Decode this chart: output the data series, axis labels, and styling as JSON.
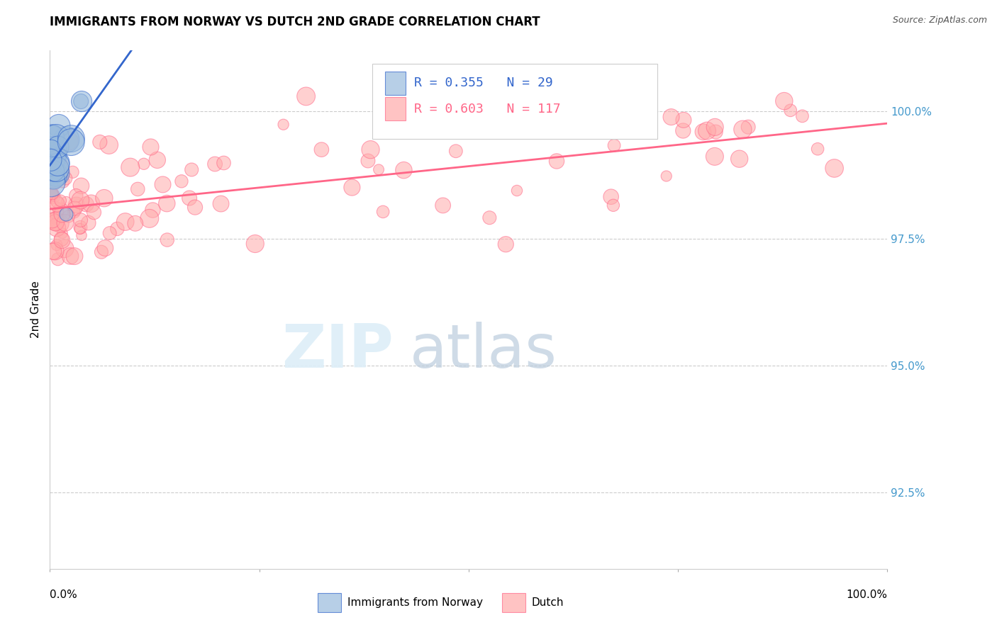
{
  "title": "IMMIGRANTS FROM NORWAY VS DUTCH 2ND GRADE CORRELATION CHART",
  "source": "Source: ZipAtlas.com",
  "ylabel": "2nd Grade",
  "yticks": [
    92.5,
    95.0,
    97.5,
    100.0
  ],
  "xlim": [
    0.0,
    100.0
  ],
  "ylim": [
    91.0,
    101.2
  ],
  "norway_R": 0.355,
  "norway_N": 29,
  "dutch_R": 0.603,
  "dutch_N": 117,
  "norway_color": "#99BBDD",
  "dutch_color": "#FFAAAA",
  "norway_edge_color": "#3366CC",
  "dutch_edge_color": "#FF6688",
  "norway_line_color": "#3366CC",
  "dutch_line_color": "#FF6688",
  "grid_color": "#CCCCCC",
  "right_tick_color": "#4499CC",
  "watermark_zip_color": "#DDEEF8",
  "watermark_atlas_color": "#BBCCDD"
}
